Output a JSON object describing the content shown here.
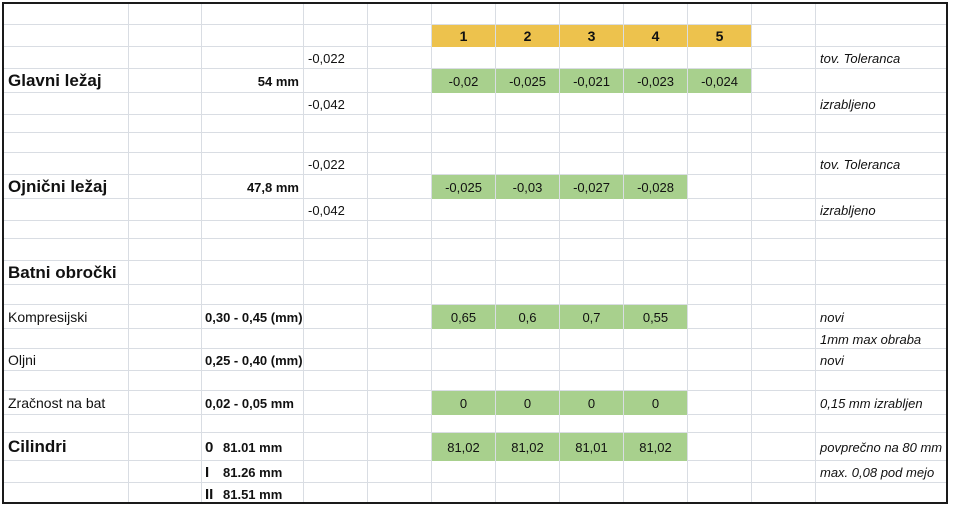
{
  "header": {
    "cols": [
      "1",
      "2",
      "3",
      "4",
      "5"
    ]
  },
  "glavni": {
    "title": "Glavni ležaj",
    "size": "54 mm",
    "tol_top": "-0,022",
    "tol_bottom": "-0,042",
    "values": [
      "-0,02",
      "-0,025",
      "-0,021",
      "-0,023",
      "-0,024"
    ],
    "note_top": "tov. Toleranca",
    "note_bottom": "izrabljeno"
  },
  "ojnicni": {
    "title": "Ojnični ležaj",
    "size": "47,8 mm",
    "tol_top": "-0,022",
    "tol_bottom": "-0,042",
    "values": [
      "-0,025",
      "-0,03",
      "-0,027",
      "-0,028"
    ],
    "note_top": "tov. Toleranca",
    "note_bottom": "izrabljeno"
  },
  "batni": {
    "title": "Batni obročki"
  },
  "kompresijski": {
    "label": "Kompresijski",
    "range": "0,30 - 0,45 (mm)",
    "values": [
      "0,65",
      "0,6",
      "0,7",
      "0,55"
    ],
    "note": "novi",
    "note2": "1mm max obraba"
  },
  "oljni": {
    "label": "Oljni",
    "range": "0,25 - 0,40 (mm)",
    "note": "novi"
  },
  "zracnost": {
    "label": "Zračnost na bat",
    "range": "0,02 - 0,05 mm",
    "values": [
      "0",
      "0",
      "0",
      "0"
    ],
    "note": "0,15 mm izrabljen"
  },
  "cilindri": {
    "title": "Cilindri",
    "rows": [
      {
        "idx": "0",
        "val": "81.01 mm"
      },
      {
        "idx": "I",
        "val": "81.26 mm"
      },
      {
        "idx": "II",
        "val": "81.51 mm"
      }
    ],
    "values": [
      "81,02",
      "81,02",
      "81,01",
      "81,02"
    ],
    "note": "povprečno na 80 mm",
    "note2": "max. 0,08 pod mejo"
  },
  "colors": {
    "accent_orange": "#edc24d",
    "accent_green": "#a8d08d",
    "grid": "#d9dde3"
  }
}
